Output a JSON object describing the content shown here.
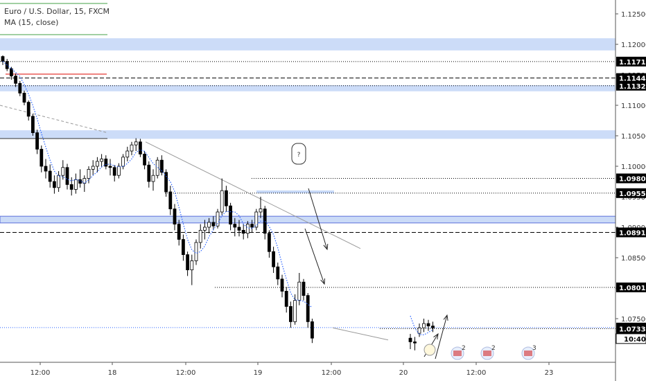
{
  "legend": {
    "symbol": "Euro / U.S. Dollar, 15, FXCM",
    "indicator": "MA (15, close)"
  },
  "colors": {
    "background": "#ffffff",
    "candle": "#000000",
    "ma": "#2962ff",
    "zone_fill": "#c6d8f7",
    "zone_stroke": "#4a5fd6",
    "level_label_bg": "#000000",
    "level_label_text": "#ffffff",
    "red_level": "#e53935",
    "green_level": "#43a047",
    "trendline": "#999999",
    "axis_text": "#333333"
  },
  "chart_data": {
    "type": "candlestick",
    "x_labels": [
      "12:00",
      "18",
      "12:00",
      "19",
      "12:00",
      "20",
      "12:00",
      "23"
    ],
    "y_ticks": [
      "1.12500",
      "1.12000",
      "1.11500",
      "1.11000",
      "1.10500",
      "1.10000",
      "1.09500",
      "1.09000",
      "1.08500",
      "1.08000",
      "1.07500"
    ],
    "ylim": [
      1.0715,
      1.1275
    ],
    "price_levels": [
      {
        "label": "1.11717",
        "value": 1.11717,
        "style": "dotted"
      },
      {
        "label": "1.11447",
        "value": 1.11447,
        "style": "dashed"
      },
      {
        "label": "1.11321",
        "value": 1.11321,
        "style": "dotted"
      },
      {
        "label": "1.09801",
        "value": 1.09801,
        "style": "dotted"
      },
      {
        "label": "1.09559",
        "value": 1.09559,
        "style": "dotted"
      },
      {
        "label": "1.08915",
        "value": 1.08915,
        "style": "dashed"
      },
      {
        "label": "1.08013",
        "value": 1.08013,
        "style": "dotted"
      },
      {
        "label": "1.07354",
        "value": 1.07354,
        "style": "dotted-blue"
      },
      {
        "label": "1.07336",
        "value": 1.07336,
        "style": "dotted"
      }
    ],
    "zones": [
      {
        "top": 1.121,
        "bottom": 1.119
      },
      {
        "top": 1.1133,
        "bottom": 1.1123
      },
      {
        "top": 1.1059,
        "bottom": 1.1045
      },
      {
        "top": 1.0918,
        "bottom": 1.0907
      }
    ],
    "countdown": "10:40",
    "annotation": "?",
    "event_badges": [
      "2",
      "2",
      "3"
    ],
    "series": [
      {
        "ohlc": [
          [
            1.118,
            1.1182,
            1.1166,
            1.1172
          ],
          [
            1.1172,
            1.1176,
            1.1156,
            1.116
          ],
          [
            1.116,
            1.1163,
            1.1142,
            1.1148
          ],
          [
            1.1148,
            1.1152,
            1.113,
            1.1136
          ],
          [
            1.1136,
            1.114,
            1.1115,
            1.112
          ],
          [
            1.112,
            1.1124,
            1.11,
            1.1105
          ],
          [
            1.1105,
            1.1108,
            1.1075,
            1.1082
          ],
          [
            1.1082,
            1.1086,
            1.105,
            1.1055
          ],
          [
            1.1055,
            1.106,
            1.102,
            1.1028
          ],
          [
            1.1028,
            1.1034,
            1.099,
            1.1
          ],
          [
            1.1,
            1.1012,
            1.098,
            1.0992
          ],
          [
            1.0992,
            1.1003,
            1.0965,
            1.0975
          ],
          [
            1.0975,
            1.0985,
            1.0955,
            1.0965
          ],
          [
            1.0965,
            1.0992,
            1.0958,
            1.0985
          ],
          [
            1.0985,
            1.101,
            1.0978,
            1.0998
          ],
          [
            1.0998,
            1.1004,
            1.0962,
            1.097
          ],
          [
            1.097,
            1.0982,
            1.0952,
            1.0962
          ],
          [
            1.0962,
            1.0988,
            1.0955,
            1.0978
          ],
          [
            1.0978,
            1.0995,
            1.0965,
            1.0972
          ],
          [
            1.0972,
            1.0985,
            1.0958,
            1.098
          ],
          [
            1.098,
            1.1,
            1.0972,
            1.0995
          ],
          [
            1.0995,
            1.101,
            1.0985,
            1.1
          ],
          [
            1.1,
            1.1015,
            1.099,
            1.1008
          ],
          [
            1.1008,
            1.102,
            1.0998,
            1.1012
          ],
          [
            1.1012,
            1.1018,
            1.0995,
            1.1
          ],
          [
            1.1,
            1.1012,
            1.0985,
            1.0998
          ],
          [
            1.0998,
            1.1002,
            1.0975,
            1.0985
          ],
          [
            1.0985,
            1.1005,
            1.098,
            1.1
          ],
          [
            1.1,
            1.102,
            1.0995,
            1.1015
          ],
          [
            1.1015,
            1.1032,
            1.1008,
            1.1025
          ],
          [
            1.1025,
            1.104,
            1.1018,
            1.1035
          ],
          [
            1.1035,
            1.1046,
            1.1025,
            1.104
          ],
          [
            1.104,
            1.1045,
            1.1015,
            1.102
          ],
          [
            1.102,
            1.1025,
            1.0995,
            1.1002
          ],
          [
            1.1002,
            1.1008,
            1.0965,
            1.0975
          ],
          [
            1.0975,
            1.0995,
            1.096,
            1.0985
          ],
          [
            1.0985,
            1.1015,
            1.098,
            1.101
          ],
          [
            1.101,
            1.1018,
            1.0985,
            1.099
          ],
          [
            1.099,
            1.0995,
            1.095,
            1.0958
          ],
          [
            1.0958,
            1.0968,
            1.092,
            1.093
          ],
          [
            1.093,
            1.0938,
            1.0895,
            1.0905
          ],
          [
            1.0905,
            1.0912,
            1.087,
            1.088
          ],
          [
            1.088,
            1.0888,
            1.0845,
            1.0855
          ],
          [
            1.0855,
            1.086,
            1.082,
            1.083
          ],
          [
            1.083,
            1.0855,
            1.0805,
            1.0845
          ],
          [
            1.0845,
            1.088,
            1.0838,
            1.0875
          ],
          [
            1.0875,
            1.0905,
            1.0865,
            1.0895
          ],
          [
            1.0895,
            1.0912,
            1.088,
            1.09
          ],
          [
            1.09,
            1.0915,
            1.089,
            1.0908
          ],
          [
            1.0908,
            1.0918,
            1.0895,
            1.0902
          ],
          [
            1.0902,
            1.093,
            1.0898,
            1.0925
          ],
          [
            1.0925,
            1.098,
            1.092,
            1.096
          ],
          [
            1.096,
            1.0968,
            1.0925,
            1.0935
          ],
          [
            1.0935,
            1.094,
            1.0895,
            1.0905
          ],
          [
            1.0905,
            1.0915,
            1.0885,
            1.09
          ],
          [
            1.09,
            1.0912,
            1.0885,
            1.0895
          ],
          [
            1.0895,
            1.0905,
            1.088,
            1.089
          ],
          [
            1.089,
            1.091,
            1.0882,
            1.0905
          ],
          [
            1.0905,
            1.0912,
            1.0892,
            1.09
          ],
          [
            1.09,
            1.093,
            1.0895,
            1.0925
          ],
          [
            1.0925,
            1.095,
            1.0915,
            1.093
          ],
          [
            1.093,
            1.0935,
            1.088,
            1.089
          ],
          [
            1.089,
            1.0895,
            1.085,
            1.086
          ],
          [
            1.086,
            1.0868,
            1.0825,
            1.0835
          ],
          [
            1.0835,
            1.0842,
            1.0805,
            1.0815
          ],
          [
            1.0815,
            1.0822,
            1.0785,
            1.0795
          ],
          [
            1.0795,
            1.0802,
            1.076,
            1.077
          ],
          [
            1.077,
            1.0778,
            1.0735,
            1.0745
          ],
          [
            1.0745,
            1.079,
            1.074,
            1.078
          ],
          [
            1.078,
            1.0825,
            1.0772,
            1.081
          ],
          [
            1.081,
            1.0815,
            1.078,
            1.0788
          ],
          [
            1.0788,
            1.0792,
            1.0735,
            1.0745
          ],
          [
            1.0745,
            1.075,
            1.071,
            1.0718
          ],
          [
            1.0718,
            1.0725,
            1.07,
            1.0712
          ],
          [
            1.0712,
            1.072,
            1.0698,
            1.071
          ],
          [
            1.0726,
            1.0742,
            1.072,
            1.0735
          ],
          [
            1.0735,
            1.075,
            1.0728,
            1.0742
          ],
          [
            1.0742,
            1.0748,
            1.073,
            1.0738
          ],
          [
            1.0738,
            1.0745,
            1.0728,
            1.0735
          ]
        ]
      }
    ]
  }
}
